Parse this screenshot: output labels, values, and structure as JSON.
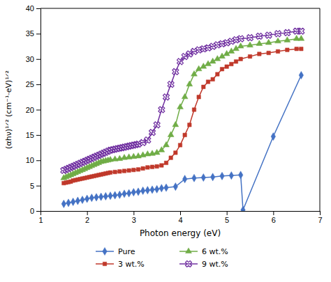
{
  "chart_data": {
    "type": "line",
    "x_label": "Photon energy (eV)",
    "y_label": "(αhν)¹ᐟ² (cm⁻¹·eV)¹ᐟ²",
    "xlim": [
      1,
      7
    ],
    "ylim": [
      0,
      40
    ],
    "xticks": [
      1,
      2,
      3,
      4,
      5,
      6,
      7
    ],
    "yticks": [
      0,
      5,
      10,
      15,
      20,
      25,
      30,
      35,
      40
    ],
    "grid": false,
    "legend": "bottom",
    "series": [
      {
        "name": "Pure",
        "color": "#4472C4",
        "marker": "diamond",
        "x": [
          1.5,
          1.6,
          1.7,
          1.8,
          1.9,
          2.0,
          2.1,
          2.2,
          2.3,
          2.4,
          2.5,
          2.6,
          2.7,
          2.8,
          2.9,
          3.0,
          3.1,
          3.2,
          3.3,
          3.4,
          3.5,
          3.6,
          3.7,
          3.9,
          4.1,
          4.3,
          4.5,
          4.7,
          4.9,
          5.1,
          5.3,
          5.35,
          6.0,
          6.6
        ],
        "values": [
          1.4,
          1.6,
          1.8,
          2.0,
          2.2,
          2.4,
          2.6,
          2.7,
          2.8,
          2.9,
          3.0,
          3.1,
          3.2,
          3.4,
          3.5,
          3.7,
          3.8,
          4.0,
          4.1,
          4.2,
          4.3,
          4.5,
          4.6,
          4.8,
          6.3,
          6.5,
          6.6,
          6.7,
          6.9,
          7.0,
          7.1,
          0.2,
          14.7,
          26.8
        ]
      },
      {
        "name": "3 wt.%",
        "color": "#C0392B",
        "marker": "square",
        "x": [
          1.5,
          1.55,
          1.6,
          1.65,
          1.7,
          1.75,
          1.8,
          1.85,
          1.9,
          1.95,
          2.0,
          2.05,
          2.1,
          2.15,
          2.2,
          2.25,
          2.3,
          2.35,
          2.4,
          2.45,
          2.5,
          2.6,
          2.7,
          2.8,
          2.9,
          3.0,
          3.1,
          3.2,
          3.3,
          3.4,
          3.5,
          3.6,
          3.7,
          3.8,
          3.9,
          4.0,
          4.1,
          4.2,
          4.3,
          4.4,
          4.5,
          4.6,
          4.7,
          4.8,
          4.9,
          5.0,
          5.1,
          5.2,
          5.3,
          5.5,
          5.7,
          5.9,
          6.1,
          6.3,
          6.5,
          6.6
        ],
        "values": [
          5.5,
          5.6,
          5.7,
          5.8,
          6.0,
          6.1,
          6.2,
          6.3,
          6.4,
          6.5,
          6.6,
          6.7,
          6.8,
          6.9,
          7.0,
          7.1,
          7.2,
          7.3,
          7.4,
          7.5,
          7.6,
          7.7,
          7.8,
          7.9,
          8.0,
          8.1,
          8.2,
          8.4,
          8.6,
          8.7,
          8.8,
          9.0,
          9.5,
          10.5,
          11.5,
          13.0,
          15.0,
          17.0,
          20.0,
          22.5,
          24.5,
          25.5,
          26.0,
          27.0,
          28.0,
          28.5,
          29.0,
          29.5,
          30.0,
          30.5,
          31.0,
          31.2,
          31.5,
          31.8,
          32.0,
          32.0
        ]
      },
      {
        "name": "6 wt.%",
        "color": "#70AD47",
        "marker": "triangle",
        "x": [
          1.5,
          1.55,
          1.6,
          1.65,
          1.7,
          1.75,
          1.8,
          1.85,
          1.9,
          1.95,
          2.0,
          2.05,
          2.1,
          2.15,
          2.2,
          2.25,
          2.3,
          2.35,
          2.4,
          2.45,
          2.5,
          2.6,
          2.7,
          2.8,
          2.9,
          3.0,
          3.1,
          3.2,
          3.3,
          3.4,
          3.5,
          3.6,
          3.7,
          3.8,
          3.9,
          4.0,
          4.1,
          4.2,
          4.3,
          4.4,
          4.5,
          4.6,
          4.7,
          4.8,
          4.9,
          5.0,
          5.1,
          5.2,
          5.3,
          5.5,
          5.7,
          5.9,
          6.1,
          6.3,
          6.5,
          6.6
        ],
        "values": [
          6.5,
          6.7,
          6.9,
          7.1,
          7.3,
          7.5,
          7.7,
          7.9,
          8.1,
          8.3,
          8.5,
          8.7,
          8.9,
          9.1,
          9.3,
          9.5,
          9.7,
          9.8,
          9.9,
          10.0,
          10.1,
          10.2,
          10.3,
          10.5,
          10.6,
          10.7,
          10.8,
          11.0,
          11.2,
          11.3,
          11.5,
          12.0,
          13.0,
          15.0,
          17.0,
          20.5,
          22.5,
          25.0,
          27.0,
          28.0,
          28.5,
          29.0,
          29.5,
          30.0,
          30.5,
          31.0,
          31.5,
          32.0,
          32.5,
          32.7,
          33.0,
          33.2,
          33.5,
          33.7,
          34.0,
          34.0
        ]
      },
      {
        "name": "9 wt.%",
        "color": "#7030A0",
        "marker": "x",
        "x": [
          1.5,
          1.55,
          1.6,
          1.65,
          1.7,
          1.75,
          1.8,
          1.85,
          1.9,
          1.95,
          2.0,
          2.05,
          2.1,
          2.15,
          2.2,
          2.25,
          2.3,
          2.35,
          2.4,
          2.45,
          2.5,
          2.55,
          2.6,
          2.65,
          2.7,
          2.75,
          2.8,
          2.85,
          2.9,
          2.95,
          3.0,
          3.05,
          3.1,
          3.2,
          3.3,
          3.4,
          3.5,
          3.6,
          3.7,
          3.8,
          3.9,
          4.0,
          4.1,
          4.2,
          4.3,
          4.4,
          4.5,
          4.6,
          4.7,
          4.8,
          4.9,
          5.0,
          5.1,
          5.2,
          5.3,
          5.5,
          5.7,
          5.9,
          6.1,
          6.3,
          6.5,
          6.6
        ],
        "values": [
          8.0,
          8.2,
          8.4,
          8.6,
          8.8,
          9.0,
          9.2,
          9.4,
          9.6,
          9.8,
          10.0,
          10.2,
          10.4,
          10.6,
          10.8,
          11.0,
          11.2,
          11.4,
          11.6,
          11.8,
          12.0,
          12.1,
          12.2,
          12.3,
          12.4,
          12.5,
          12.6,
          12.7,
          12.8,
          12.9,
          13.0,
          13.1,
          13.2,
          13.5,
          14.0,
          15.5,
          17.0,
          20.0,
          22.5,
          25.0,
          27.5,
          29.5,
          30.5,
          31.0,
          31.5,
          31.8,
          32.0,
          32.2,
          32.5,
          32.8,
          33.0,
          33.2,
          33.5,
          33.8,
          34.0,
          34.2,
          34.5,
          34.7,
          35.0,
          35.2,
          35.5,
          35.5
        ]
      }
    ]
  }
}
